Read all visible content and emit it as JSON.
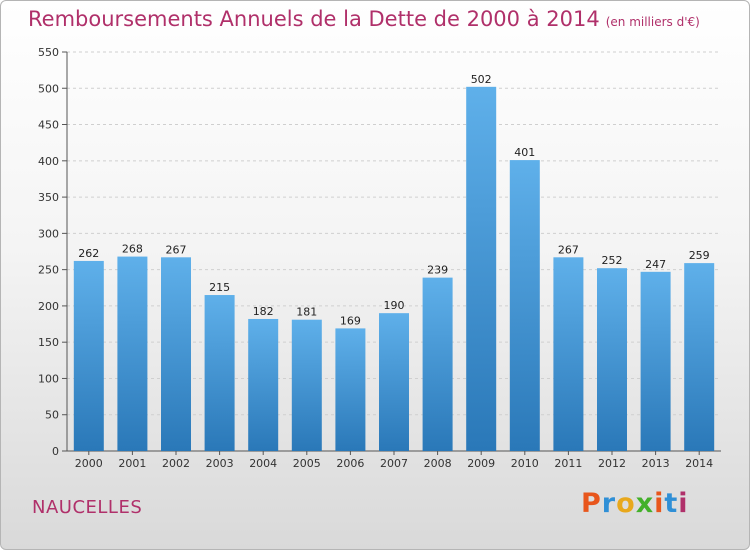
{
  "header": {
    "title": "Remboursements Annuels de la Dette de 2000 à 2014",
    "unit": "(en milliers d'€)"
  },
  "footer": {
    "commune": "NAUCELLES",
    "logo": {
      "text": "Proxiti",
      "colors": [
        "#e8561c",
        "#2f8fd6",
        "#e8a81c",
        "#43b02a",
        "#e8561c",
        "#2f8fd6",
        "#b0306a"
      ]
    }
  },
  "colors": {
    "bar_top": "#5fb0ea",
    "bar_bottom": "#2a78b8",
    "title": "#b0306a",
    "grid": "#cfcfcf"
  },
  "chart_data": {
    "type": "bar",
    "categories": [
      "2000",
      "2001",
      "2002",
      "2003",
      "2004",
      "2005",
      "2006",
      "2007",
      "2008",
      "2009",
      "2010",
      "2011",
      "2012",
      "2013",
      "2014"
    ],
    "values": [
      262,
      268,
      267,
      215,
      182,
      181,
      169,
      190,
      239,
      502,
      401,
      267,
      252,
      247,
      259
    ],
    "ylim": [
      0,
      550
    ],
    "yticks": [
      0,
      50,
      100,
      150,
      200,
      250,
      300,
      350,
      400,
      450,
      500,
      550
    ],
    "grid": true,
    "data_labels": true
  }
}
